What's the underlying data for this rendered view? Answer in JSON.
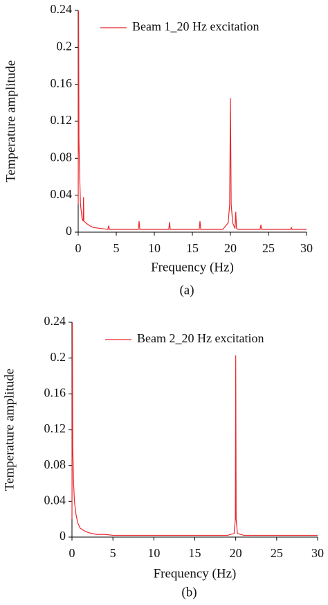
{
  "chart_data": [
    {
      "type": "line",
      "caption": "(a)",
      "xlabel": "Frequency (Hz)",
      "ylabel": "Temperature amplitude",
      "x": [
        0,
        0.05,
        0.1,
        0.2,
        0.3,
        0.5,
        0.65,
        0.7,
        0.75,
        1,
        1.5,
        2,
        3,
        3.9,
        4,
        4.1,
        5,
        6,
        7,
        7.9,
        8,
        8.1,
        9,
        10,
        11,
        11.9,
        12,
        12.1,
        13,
        14,
        15,
        15.9,
        16,
        16.1,
        17,
        18,
        19,
        19.7,
        19.9,
        20,
        20.1,
        20.3,
        20.6,
        20.7,
        20.8,
        21,
        22,
        23,
        23.9,
        24,
        24.1,
        25,
        26,
        27,
        27.9,
        28,
        28.1,
        29,
        30
      ],
      "series": [
        {
          "name": "Beam 1_20 Hz excitation",
          "color": "#e8262b",
          "values": [
            0.03,
            0.24,
            0.1,
            0.06,
            0.03,
            0.015,
            0.012,
            0.038,
            0.012,
            0.01,
            0.007,
            0.005,
            0.004,
            0.003,
            0.007,
            0.003,
            0.003,
            0.003,
            0.003,
            0.003,
            0.012,
            0.003,
            0.003,
            0.003,
            0.003,
            0.003,
            0.011,
            0.003,
            0.003,
            0.003,
            0.003,
            0.003,
            0.012,
            0.003,
            0.003,
            0.003,
            0.003,
            0.01,
            0.03,
            0.145,
            0.03,
            0.01,
            0.004,
            0.022,
            0.004,
            0.003,
            0.003,
            0.003,
            0.003,
            0.008,
            0.003,
            0.003,
            0.003,
            0.003,
            0.003,
            0.005,
            0.003,
            0.003,
            0.003
          ]
        }
      ],
      "xlim": [
        0,
        30
      ],
      "xticks": [
        0,
        5,
        10,
        15,
        20,
        25,
        30
      ],
      "ylim": [
        0,
        0.24
      ],
      "yticks": [
        0,
        0.04,
        0.08,
        0.12,
        0.16,
        0.2,
        0.24
      ],
      "legend": "upper right"
    },
    {
      "type": "line",
      "caption": "(b)",
      "xlabel": "Frequency (Hz)",
      "ylabel": "Temperature amplitude",
      "x": [
        0,
        0.05,
        0.1,
        0.2,
        0.3,
        0.5,
        0.7,
        1,
        1.5,
        2,
        3,
        4,
        5,
        7,
        10,
        15,
        19,
        19.8,
        19.95,
        20,
        20.05,
        20.2,
        21,
        25,
        30
      ],
      "series": [
        {
          "name": "Beam 2_20 Hz excitation",
          "color": "#e8262b",
          "values": [
            0.02,
            0.24,
            0.1,
            0.06,
            0.04,
            0.025,
            0.016,
            0.01,
            0.007,
            0.005,
            0.003,
            0.003,
            0.002,
            0.002,
            0.002,
            0.002,
            0.002,
            0.004,
            0.02,
            0.203,
            0.02,
            0.004,
            0.002,
            0.002,
            0.002
          ]
        }
      ],
      "xlim": [
        0,
        30
      ],
      "xticks": [
        0,
        5,
        10,
        15,
        20,
        25,
        30
      ],
      "ylim": [
        0,
        0.24
      ],
      "yticks": [
        0,
        0.04,
        0.08,
        0.12,
        0.16,
        0.2,
        0.24
      ],
      "legend": "upper right"
    }
  ]
}
